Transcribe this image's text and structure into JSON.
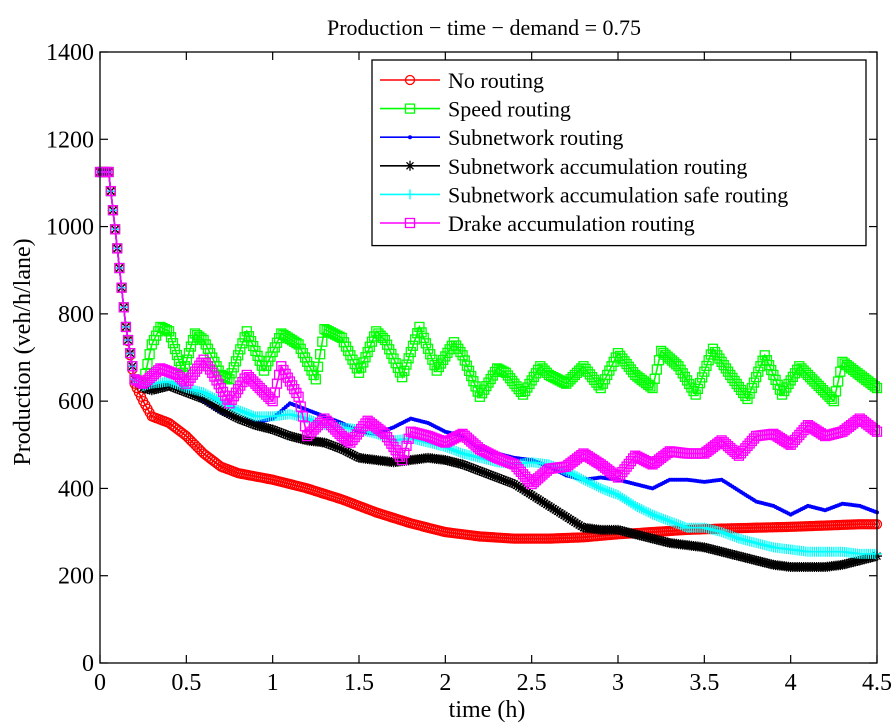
{
  "chart_data": {
    "type": "line",
    "title": "Production − time − demand = 0.75",
    "xlabel": "time (h)",
    "ylabel": "Production (veh/h/lane)",
    "xlim": [
      0,
      4.5
    ],
    "ylim": [
      0,
      1400
    ],
    "xticks": [
      0,
      0.5,
      1,
      1.5,
      2,
      2.5,
      3,
      3.5,
      4,
      4.5
    ],
    "xtick_labels": [
      "0",
      "0.5",
      "1",
      "1.5",
      "2",
      "2.5",
      "3",
      "3.5",
      "4",
      "4.5"
    ],
    "yticks": [
      0,
      200,
      400,
      600,
      800,
      1000,
      1200,
      1400
    ],
    "ytick_labels": [
      "0",
      "200",
      "400",
      "600",
      "800",
      "1000",
      "1200",
      "1400"
    ],
    "grid": false,
    "legend_position": "top-right",
    "series": [
      {
        "name": "No routing",
        "color": "#ff0000",
        "marker": "circle",
        "x": [
          0,
          0.05,
          0.1,
          0.15,
          0.2,
          0.25,
          0.3,
          0.4,
          0.5,
          0.6,
          0.7,
          0.8,
          1.0,
          1.2,
          1.4,
          1.6,
          1.8,
          2.0,
          2.2,
          2.4,
          2.6,
          2.8,
          3.0,
          3.2,
          3.4,
          3.6,
          3.8,
          4.0,
          4.2,
          4.4,
          4.5
        ],
        "values": [
          1125,
          1125,
          950,
          770,
          640,
          600,
          565,
          550,
          520,
          480,
          450,
          435,
          420,
          400,
          375,
          345,
          320,
          300,
          290,
          285,
          285,
          288,
          295,
          300,
          305,
          308,
          310,
          312,
          315,
          318,
          318
        ]
      },
      {
        "name": "Speed routing",
        "color": "#00ff00",
        "marker": "square",
        "x": [
          0,
          0.05,
          0.1,
          0.15,
          0.2,
          0.25,
          0.3,
          0.35,
          0.4,
          0.48,
          0.55,
          0.6,
          0.7,
          0.75,
          0.85,
          0.95,
          1.05,
          1.15,
          1.25,
          1.3,
          1.4,
          1.5,
          1.6,
          1.65,
          1.75,
          1.85,
          1.95,
          2.05,
          2.1,
          2.2,
          2.3,
          2.35,
          2.45,
          2.55,
          2.6,
          2.7,
          2.8,
          2.9,
          3.0,
          3.1,
          3.2,
          3.25,
          3.35,
          3.45,
          3.55,
          3.65,
          3.75,
          3.85,
          3.95,
          4.05,
          4.15,
          4.25,
          4.3,
          4.4,
          4.5
        ],
        "values": [
          1125,
          1125,
          950,
          770,
          650,
          640,
          730,
          770,
          760,
          665,
          755,
          740,
          660,
          650,
          760,
          670,
          755,
          730,
          650,
          765,
          745,
          665,
          760,
          740,
          655,
          770,
          670,
          735,
          705,
          610,
          675,
          665,
          615,
          680,
          660,
          640,
          680,
          630,
          710,
          660,
          630,
          715,
          680,
          615,
          720,
          660,
          605,
          705,
          615,
          680,
          640,
          600,
          690,
          660,
          630
        ]
      },
      {
        "name": "Subnetwork routing",
        "color": "#0000ff",
        "marker": "dot",
        "x": [
          0,
          0.05,
          0.1,
          0.15,
          0.2,
          0.25,
          0.3,
          0.4,
          0.5,
          0.6,
          0.7,
          0.8,
          0.9,
          1.0,
          1.1,
          1.2,
          1.3,
          1.4,
          1.5,
          1.6,
          1.7,
          1.8,
          1.9,
          2.0,
          2.1,
          2.2,
          2.3,
          2.4,
          2.5,
          2.6,
          2.7,
          2.8,
          2.9,
          3.0,
          3.1,
          3.2,
          3.3,
          3.4,
          3.5,
          3.6,
          3.7,
          3.8,
          3.9,
          4.0,
          4.1,
          4.2,
          4.3,
          4.4,
          4.5
        ],
        "values": [
          1125,
          1125,
          950,
          770,
          650,
          630,
          625,
          635,
          625,
          600,
          575,
          560,
          550,
          560,
          595,
          580,
          565,
          550,
          530,
          525,
          540,
          560,
          550,
          530,
          520,
          490,
          480,
          470,
          465,
          450,
          430,
          420,
          425,
          420,
          410,
          400,
          420,
          420,
          415,
          420,
          395,
          370,
          360,
          340,
          360,
          350,
          365,
          360,
          345
        ]
      },
      {
        "name": "Subnetwork accumulation routing",
        "color": "#000000",
        "marker": "star",
        "x": [
          0,
          0.05,
          0.1,
          0.15,
          0.2,
          0.25,
          0.3,
          0.4,
          0.5,
          0.6,
          0.7,
          0.8,
          0.9,
          1.0,
          1.1,
          1.2,
          1.3,
          1.4,
          1.5,
          1.6,
          1.7,
          1.8,
          1.9,
          2.0,
          2.1,
          2.2,
          2.3,
          2.4,
          2.5,
          2.6,
          2.7,
          2.8,
          2.9,
          3.0,
          3.1,
          3.2,
          3.3,
          3.4,
          3.5,
          3.6,
          3.7,
          3.8,
          3.9,
          4.0,
          4.1,
          4.2,
          4.3,
          4.4,
          4.5
        ],
        "values": [
          1125,
          1125,
          950,
          770,
          650,
          630,
          625,
          635,
          620,
          605,
          580,
          560,
          545,
          535,
          520,
          510,
          505,
          490,
          470,
          465,
          460,
          465,
          470,
          465,
          455,
          440,
          425,
          410,
          385,
          360,
          335,
          310,
          305,
          305,
          295,
          285,
          275,
          270,
          265,
          255,
          245,
          235,
          225,
          220,
          220,
          220,
          225,
          235,
          245
        ]
      },
      {
        "name": "Subnetwork accumulation safe routing",
        "color": "#00ffff",
        "marker": "plus",
        "x": [
          0,
          0.05,
          0.1,
          0.15,
          0.2,
          0.25,
          0.3,
          0.4,
          0.5,
          0.6,
          0.7,
          0.8,
          0.9,
          1.0,
          1.1,
          1.2,
          1.3,
          1.4,
          1.5,
          1.6,
          1.7,
          1.8,
          1.9,
          2.0,
          2.1,
          2.2,
          2.3,
          2.4,
          2.5,
          2.6,
          2.7,
          2.8,
          2.9,
          3.0,
          3.1,
          3.2,
          3.3,
          3.4,
          3.5,
          3.6,
          3.7,
          3.8,
          3.9,
          4.0,
          4.1,
          4.2,
          4.3,
          4.4,
          4.5
        ],
        "values": [
          1125,
          1125,
          950,
          770,
          650,
          635,
          640,
          645,
          630,
          620,
          600,
          580,
          565,
          565,
          570,
          560,
          545,
          540,
          535,
          525,
          510,
          515,
          505,
          495,
          480,
          470,
          460,
          455,
          460,
          455,
          440,
          420,
          400,
          385,
          360,
          340,
          325,
          310,
          310,
          300,
          285,
          275,
          265,
          260,
          255,
          255,
          255,
          250,
          250
        ]
      },
      {
        "name": "Drake accumulation routing",
        "color": "#ff00ff",
        "marker": "square",
        "x": [
          0,
          0.05,
          0.1,
          0.15,
          0.2,
          0.25,
          0.35,
          0.45,
          0.5,
          0.6,
          0.65,
          0.75,
          0.85,
          0.9,
          1.0,
          1.05,
          1.15,
          1.2,
          1.3,
          1.4,
          1.45,
          1.55,
          1.65,
          1.75,
          1.8,
          1.9,
          2.0,
          2.1,
          2.2,
          2.3,
          2.4,
          2.5,
          2.6,
          2.7,
          2.8,
          2.9,
          3.0,
          3.1,
          3.2,
          3.3,
          3.4,
          3.5,
          3.6,
          3.7,
          3.8,
          3.9,
          4.0,
          4.1,
          4.2,
          4.3,
          4.4,
          4.5
        ],
        "values": [
          1125,
          1125,
          950,
          770,
          650,
          640,
          675,
          660,
          640,
          695,
          665,
          595,
          660,
          640,
          600,
          680,
          610,
          520,
          560,
          520,
          505,
          555,
          525,
          465,
          530,
          520,
          505,
          525,
          490,
          470,
          455,
          410,
          445,
          450,
          480,
          455,
          425,
          475,
          455,
          485,
          480,
          480,
          510,
          475,
          520,
          525,
          500,
          545,
          520,
          530,
          560,
          530
        ]
      }
    ]
  }
}
